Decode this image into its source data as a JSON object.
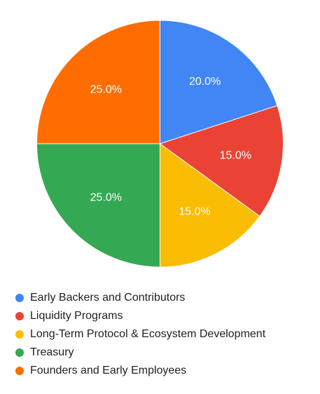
{
  "chart_data": {
    "type": "pie",
    "title": "",
    "legend_position": "bottom",
    "slices": [
      {
        "name": "Early Backers and Contributors",
        "value": 20.0,
        "label": "20.0%",
        "color": "#4285F4"
      },
      {
        "name": "Liquidity Programs",
        "value": 15.0,
        "label": "15.0%",
        "color": "#EA4335"
      },
      {
        "name": "Long-Term Protocol & Ecosystem Development",
        "value": 15.0,
        "label": "15.0%",
        "color": "#FBBC04"
      },
      {
        "name": "Treasury",
        "value": 25.0,
        "label": "25.0%",
        "color": "#34A853"
      },
      {
        "name": "Founders and Early Employees",
        "value": 25.0,
        "label": "25.0%",
        "color": "#FF6D01"
      }
    ]
  }
}
